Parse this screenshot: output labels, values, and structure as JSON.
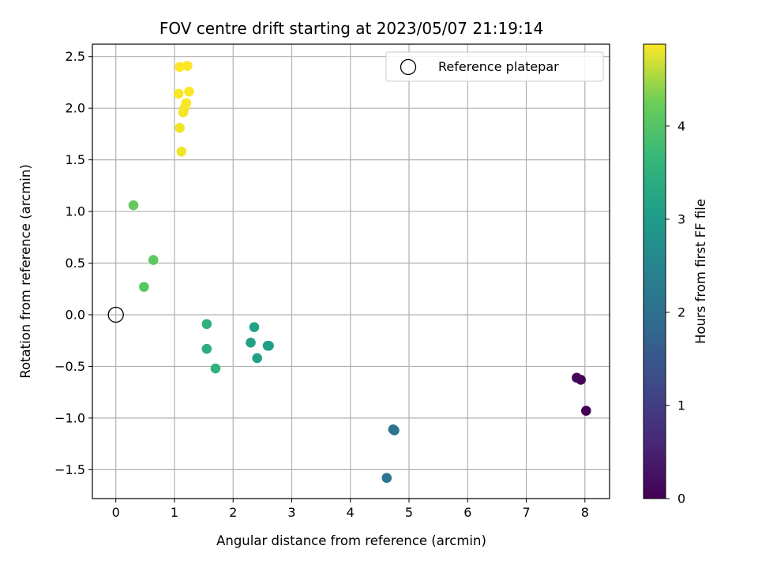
{
  "chart_data": {
    "type": "scatter",
    "title": "FOV centre drift starting at 2023/05/07 21:19:14",
    "xlabel": "Angular distance from reference (arcmin)",
    "ylabel": "Rotation from reference (arcmin)",
    "xlim": [
      -0.4,
      8.42
    ],
    "ylim": [
      -1.78,
      2.62
    ],
    "xticks": [
      0,
      1,
      2,
      3,
      4,
      5,
      6,
      7,
      8
    ],
    "yticks": [
      -1.5,
      -1.0,
      -0.5,
      0.0,
      0.5,
      1.0,
      1.5,
      2.0,
      2.5
    ],
    "xtick_labels": [
      "0",
      "1",
      "2",
      "3",
      "4",
      "5",
      "6",
      "7",
      "8"
    ],
    "ytick_labels": [
      "−1.5",
      "−1.0",
      "−0.5",
      "0.0",
      "0.5",
      "1.0",
      "1.5",
      "2.0",
      "2.5"
    ],
    "grid": true,
    "legend": {
      "placement": "top-right",
      "entries": [
        {
          "label": "Reference platepar",
          "marker": "open-circle"
        }
      ]
    },
    "reference_point": {
      "x": 0.0,
      "y": 0.0,
      "label": "Reference platepar"
    },
    "colorbar": {
      "label": "Hours from first FF file",
      "min": 0,
      "max": 4.88,
      "ticks": [
        0,
        1,
        2,
        3,
        4
      ],
      "colormap": "viridis"
    },
    "points": [
      {
        "x": 8.02,
        "y": -0.93,
        "hours": 0.0
      },
      {
        "x": 7.93,
        "y": -0.63,
        "hours": 0.05
      },
      {
        "x": 7.86,
        "y": -0.61,
        "hours": 0.1
      },
      {
        "x": 4.73,
        "y": -1.11,
        "hours": 2.05
      },
      {
        "x": 4.75,
        "y": -1.12,
        "hours": 2.1
      },
      {
        "x": 4.62,
        "y": -1.58,
        "hours": 2.15
      },
      {
        "x": 2.59,
        "y": -0.3,
        "hours": 3.05
      },
      {
        "x": 2.61,
        "y": -0.3,
        "hours": 3.08
      },
      {
        "x": 2.41,
        "y": -0.42,
        "hours": 3.1
      },
      {
        "x": 2.36,
        "y": -0.12,
        "hours": 3.12
      },
      {
        "x": 2.3,
        "y": -0.27,
        "hours": 3.15
      },
      {
        "x": 1.55,
        "y": -0.33,
        "hours": 3.45
      },
      {
        "x": 1.55,
        "y": -0.09,
        "hours": 3.5
      },
      {
        "x": 1.7,
        "y": -0.52,
        "hours": 3.55
      },
      {
        "x": 0.48,
        "y": 0.27,
        "hours": 4.05
      },
      {
        "x": 0.64,
        "y": 0.53,
        "hours": 4.1
      },
      {
        "x": 0.3,
        "y": 1.06,
        "hours": 4.15
      },
      {
        "x": 1.12,
        "y": 1.58,
        "hours": 4.82
      },
      {
        "x": 1.09,
        "y": 1.81,
        "hours": 4.83
      },
      {
        "x": 1.15,
        "y": 1.96,
        "hours": 4.84
      },
      {
        "x": 1.17,
        "y": 2.0,
        "hours": 4.85
      },
      {
        "x": 1.2,
        "y": 2.05,
        "hours": 4.86
      },
      {
        "x": 1.07,
        "y": 2.14,
        "hours": 4.86
      },
      {
        "x": 1.25,
        "y": 2.16,
        "hours": 4.87
      },
      {
        "x": 1.09,
        "y": 2.4,
        "hours": 4.87
      },
      {
        "x": 1.22,
        "y": 2.41,
        "hours": 4.88
      }
    ]
  }
}
